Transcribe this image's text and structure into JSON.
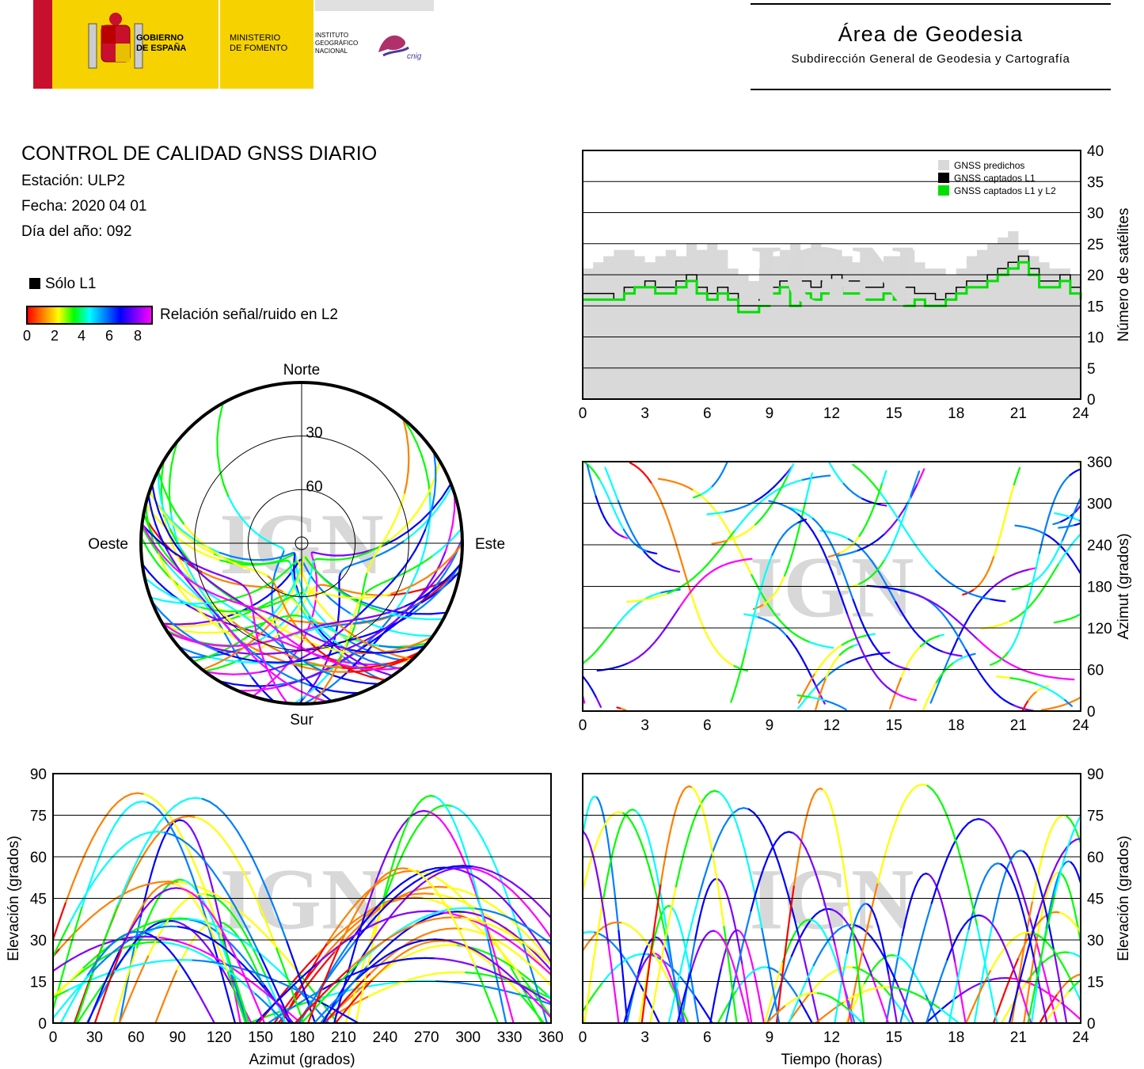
{
  "header": {
    "government": "GOBIERNO\nDE ESPAÑA",
    "ministry": "MINISTERIO\nDE FOMENTO",
    "institute": "INSTITUTO\nGEOGRÁFICO\nNACIONAL",
    "cnig": "cnig",
    "area_title": "Área de Geodesia",
    "area_subtitle": "Subdirección General de Geodesia y Cartografía"
  },
  "info": {
    "title": "CONTROL DE CALIDAD GNSS DIARIO",
    "station": "Estación: ULP2",
    "date": "Fecha: 2020 04 01",
    "doy": "Día del año: 092"
  },
  "legend": {
    "l1_only": "Sólo L1",
    "snr_label": "Relación señal/ruido en L2",
    "snr_ticks": [
      "0",
      "2",
      "4",
      "6",
      "8"
    ],
    "colors": [
      "#ff0000",
      "#ff8000",
      "#ffff00",
      "#00ff00",
      "#00ffff",
      "#0080ff",
      "#0000ff",
      "#8000ff",
      "#ff00ff"
    ]
  },
  "watermark": "IGN",
  "chart_data": [
    {
      "id": "satellite_count",
      "type": "area",
      "x_ticks": [
        "0",
        "3",
        "6",
        "9",
        "12",
        "15",
        "18",
        "21",
        "24"
      ],
      "y_ticks": [
        "0",
        "5",
        "10",
        "15",
        "20",
        "25",
        "30",
        "35",
        "40"
      ],
      "xlim": [
        0,
        24
      ],
      "ylim": [
        0,
        40
      ],
      "ylabel": "Número de satélites",
      "legend_position": "top-right",
      "series": [
        {
          "name": "GNSS predichos",
          "color": "#d9d9d9",
          "x": [
            0,
            0.5,
            1,
            1.5,
            2,
            2.5,
            3,
            3.5,
            4,
            4.5,
            5,
            5.5,
            6,
            6.5,
            7,
            7.5,
            8,
            8.5,
            9,
            9.5,
            10,
            10.5,
            11,
            11.5,
            12,
            12.5,
            13,
            13.5,
            14,
            14.5,
            15,
            15.5,
            16,
            16.5,
            17,
            17.5,
            18,
            18.5,
            19,
            19.5,
            20,
            20.5,
            21,
            21.5,
            22,
            22.5,
            23,
            23.5,
            24
          ],
          "values": [
            21,
            22,
            23,
            24,
            24,
            23,
            22,
            23,
            24,
            23,
            25,
            24,
            25,
            24,
            21,
            20,
            19,
            21,
            23,
            24,
            25,
            24,
            25,
            24,
            24,
            23,
            22,
            23,
            22,
            23,
            23,
            24,
            22,
            21,
            21,
            20,
            21,
            23,
            24,
            25,
            26,
            27,
            24,
            23,
            22,
            21,
            21,
            20,
            21
          ]
        },
        {
          "name": "GNSS captados L1",
          "color": "#000000",
          "x": [
            0,
            0.5,
            1,
            1.5,
            2,
            2.5,
            3,
            3.5,
            4,
            4.5,
            5,
            5.5,
            6,
            6.5,
            7,
            7.5,
            8,
            8.5,
            9,
            9.5,
            10,
            10.5,
            11,
            11.5,
            12,
            12.5,
            13,
            13.5,
            14,
            14.5,
            15,
            15.5,
            16,
            16.5,
            17,
            17.5,
            18,
            18.5,
            19,
            19.5,
            20,
            20.5,
            21,
            21.5,
            22,
            22.5,
            23,
            23.5,
            24
          ],
          "values": [
            17,
            17,
            17,
            16,
            18,
            18,
            19,
            18,
            18,
            19,
            20,
            18,
            17,
            18,
            17,
            15,
            15,
            16,
            18,
            19,
            18,
            19,
            18,
            19,
            20,
            19,
            19,
            18,
            18,
            19,
            18,
            18,
            17,
            17,
            16,
            17,
            18,
            19,
            19,
            20,
            21,
            22,
            23,
            21,
            19,
            19,
            20,
            18,
            17
          ]
        },
        {
          "name": "GNSS captados L1 y L2",
          "color": "#00e000",
          "x": [
            0,
            0.5,
            1,
            1.5,
            2,
            2.5,
            3,
            3.5,
            4,
            4.5,
            5,
            5.5,
            6,
            6.5,
            7,
            7.5,
            8,
            8.5,
            9,
            9.5,
            10,
            10.5,
            11,
            11.5,
            12,
            12.5,
            13,
            13.5,
            14,
            14.5,
            15,
            15.5,
            16,
            16.5,
            17,
            17.5,
            18,
            18.5,
            19,
            19.5,
            20,
            20.5,
            21,
            21.5,
            22,
            22.5,
            23,
            23.5,
            24
          ],
          "values": [
            16,
            16,
            16,
            16,
            17,
            18,
            18,
            17,
            17,
            18,
            19,
            17,
            16,
            17,
            16,
            14,
            14,
            15,
            17,
            18,
            15,
            17,
            16,
            17,
            18,
            17,
            17,
            16,
            16,
            17,
            16,
            15,
            16,
            15,
            15,
            16,
            17,
            18,
            18,
            19,
            20,
            21,
            22,
            20,
            18,
            18,
            19,
            17,
            16
          ]
        }
      ]
    },
    {
      "id": "azimuth_time",
      "type": "scatter",
      "x_ticks": [
        "0",
        "3",
        "6",
        "9",
        "12",
        "15",
        "18",
        "21",
        "24"
      ],
      "y_ticks": [
        "0",
        "60",
        "120",
        "180",
        "240",
        "300",
        "360"
      ],
      "xlim": [
        0,
        24
      ],
      "ylim": [
        0,
        360
      ],
      "ylabel": "Azimut (grados)"
    },
    {
      "id": "skyplot",
      "type": "scatter",
      "directions": {
        "north": "Norte",
        "south": "Sur",
        "east": "Este",
        "west": "Oeste"
      },
      "ring_labels": [
        "30",
        "60"
      ]
    },
    {
      "id": "elevation_azimuth",
      "type": "scatter",
      "x_ticks": [
        "0",
        "30",
        "60",
        "90",
        "120",
        "150",
        "180",
        "210",
        "240",
        "270",
        "300",
        "330",
        "360"
      ],
      "y_ticks": [
        "0",
        "15",
        "30",
        "45",
        "60",
        "75",
        "90"
      ],
      "xlim": [
        0,
        360
      ],
      "ylim": [
        0,
        90
      ],
      "xlabel": "Azimut (grados)",
      "ylabel": "Elevación (grados)"
    },
    {
      "id": "elevation_time",
      "type": "scatter",
      "x_ticks": [
        "0",
        "3",
        "6",
        "9",
        "12",
        "15",
        "18",
        "21",
        "24"
      ],
      "y_ticks": [
        "0",
        "15",
        "30",
        "45",
        "60",
        "75",
        "90"
      ],
      "xlim": [
        0,
        24
      ],
      "ylim": [
        0,
        90
      ],
      "xlabel": "Tiempo (horas)",
      "ylabel": "Elevación (grados)"
    }
  ]
}
